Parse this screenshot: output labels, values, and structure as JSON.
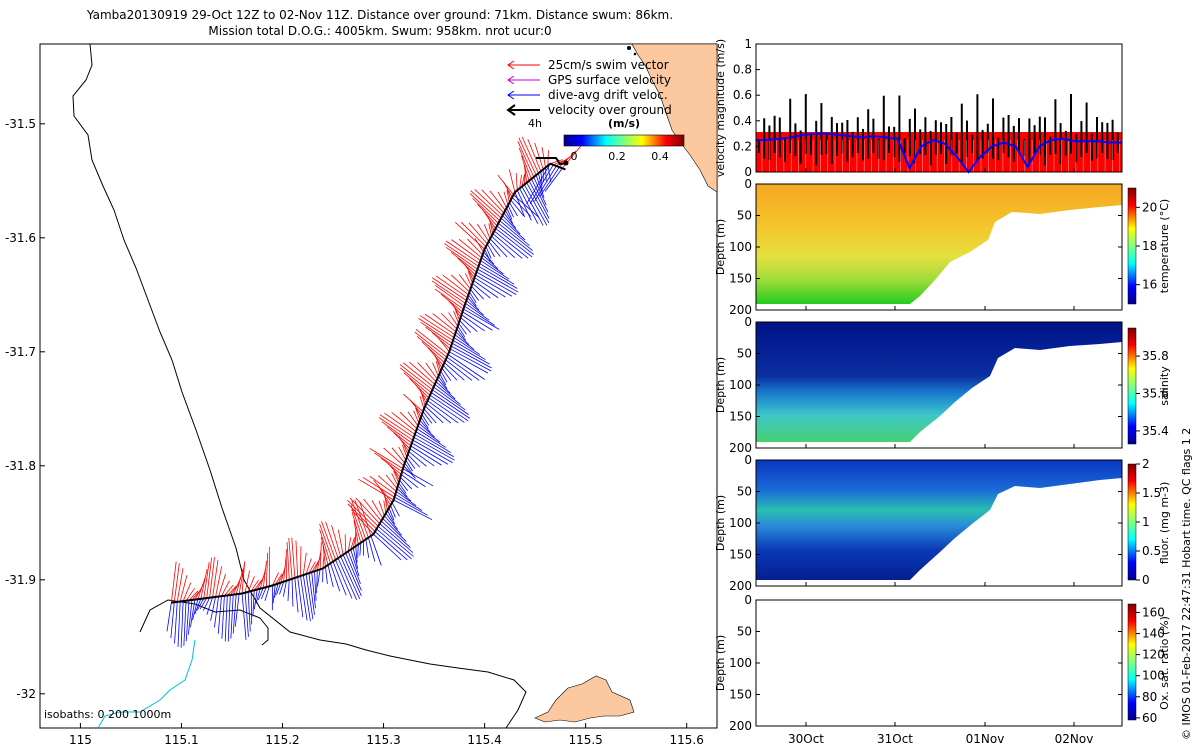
{
  "header": {
    "title_line1": "Yamba20130919 29-Oct 12Z to 02-Nov 11Z. Distance over ground: 71km. Distance swum: 86km.",
    "title_line2": "Mission total D.O.G.: 4005km. Swum: 958km. nrot ucur:0"
  },
  "credit": "© IMOS 01-Feb-2017 22:47:31 Hobart time. QC flags 1  2",
  "colors": {
    "swim": "#ff0000",
    "gps": "#cc00cc",
    "drift": "#0000ff",
    "ground": "#000000",
    "coast": "#000000",
    "isobath": "#00c0e0",
    "land": "#fcc8a0"
  },
  "map": {
    "legend": [
      {
        "label": "25cm/s swim vector",
        "color": "#ff0000"
      },
      {
        "label": "GPS surface velocity",
        "color": "#cc00cc"
      },
      {
        "label": "dive-avg drift veloc.",
        "color": "#0000ff"
      },
      {
        "label": "velocity over ground",
        "color": "#000000"
      }
    ],
    "scale_label": "4h",
    "colorbar_label": "(m/s)",
    "colorbar_ticks": [
      "0",
      "0.2",
      "0.4"
    ],
    "isobaths_label": "isobaths: 0   200  1000m"
  },
  "chart_data": [
    {
      "type": "line",
      "name": "map",
      "xticks": [
        115,
        115.1,
        115.2,
        115.3,
        115.4,
        115.5,
        115.6
      ],
      "yticks": [
        -31.5,
        -31.6,
        -31.7,
        -31.8,
        -31.9,
        -32
      ],
      "xlim": [
        114.96,
        115.63
      ],
      "ylim": [
        -32.03,
        -31.43
      ],
      "track": [
        [
          115.09,
          -31.92
        ],
        [
          115.16,
          -31.912
        ],
        [
          115.19,
          -31.905
        ],
        [
          115.24,
          -31.89
        ],
        [
          115.29,
          -31.86
        ],
        [
          115.31,
          -31.83
        ],
        [
          115.32,
          -31.8
        ],
        [
          115.34,
          -31.75
        ],
        [
          115.365,
          -31.7
        ],
        [
          115.38,
          -31.66
        ],
        [
          115.4,
          -31.61
        ],
        [
          115.43,
          -31.56
        ],
        [
          115.465,
          -31.535
        ],
        [
          115.48,
          -31.54
        ]
      ]
    },
    {
      "type": "line",
      "name": "velocity",
      "ylabel": "velocity magnitude (m/s)",
      "yticks": [
        0,
        0.2,
        0.4,
        0.6,
        0.8,
        1
      ],
      "ylim": [
        0,
        1
      ],
      "swim_speed_band": 0.25,
      "drift_speed": [
        0.25,
        0.25,
        0.26,
        0.27,
        0.29,
        0.3,
        0.3,
        0.29,
        0.28,
        0.27,
        0.28,
        0.27,
        0.26,
        0.03,
        0.2,
        0.25,
        0.22,
        0.12,
        0.0,
        0.12,
        0.2,
        0.23,
        0.2,
        0.04,
        0.2,
        0.25,
        0.26,
        0.24,
        0.24,
        0.24,
        0.23,
        0.23
      ]
    },
    {
      "type": "heatmap",
      "name": "temperature",
      "ylabel": "Depth (m)",
      "yticks": [
        0,
        50,
        100,
        150,
        200
      ],
      "colorbar_label": "temperature (°C)",
      "colorbar_ticks": [
        16,
        18,
        20
      ]
    },
    {
      "type": "heatmap",
      "name": "salinity",
      "ylabel": "Depth (m)",
      "yticks": [
        0,
        50,
        100,
        150,
        200
      ],
      "colorbar_label": "salinity",
      "colorbar_ticks": [
        35.4,
        35.6,
        35.8
      ]
    },
    {
      "type": "heatmap",
      "name": "fluorescence",
      "ylabel": "Depth (m)",
      "yticks": [
        0,
        50,
        100,
        150,
        200
      ],
      "colorbar_label": "fluor. (mg m-3)",
      "colorbar_ticks": [
        0,
        0.5,
        1,
        1.5,
        2
      ]
    },
    {
      "type": "heatmap",
      "name": "oxygen",
      "ylabel": "Depth (m)",
      "yticks": [
        0,
        50,
        100,
        150,
        200
      ],
      "colorbar_label": "Ox. sat. ratio (%)",
      "colorbar_ticks": [
        60,
        80,
        100,
        120,
        140,
        160
      ],
      "xticks": [
        "30Oct",
        "31Oct",
        "01Nov",
        "02Nov"
      ]
    }
  ]
}
